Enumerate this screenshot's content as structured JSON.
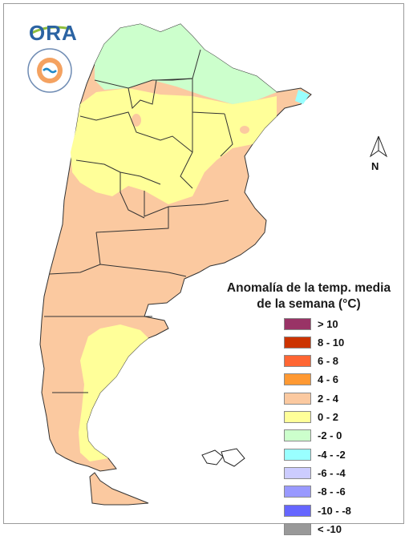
{
  "logo": {
    "text": "ORA",
    "seal_text": "INSTITUTO METEOROLOGICO NACIONAL ARGENTINA"
  },
  "north_arrow": {
    "label": "N"
  },
  "legend": {
    "title_line1": "Anomalía de la temp. media",
    "title_line2": "de la semana (°C)",
    "items": [
      {
        "label": "> 10",
        "color": "#993366"
      },
      {
        "label": "8 - 10",
        "color": "#cc3300"
      },
      {
        "label": "6 - 8",
        "color": "#ff6633"
      },
      {
        "label": "4 - 6",
        "color": "#ff9933"
      },
      {
        "label": "2 - 4",
        "color": "#fbc9a0"
      },
      {
        "label": "0 - 2",
        "color": "#ffff99"
      },
      {
        "label": "-2 - 0",
        "color": "#ccffcc"
      },
      {
        "label": "-4 - -2",
        "color": "#99ffff"
      },
      {
        "label": "-6 - -4",
        "color": "#ccccff"
      },
      {
        "label": "-8 - -6",
        "color": "#9999ff"
      },
      {
        "label": "-10 - -8",
        "color": "#6666ff"
      },
      {
        "label": "< -10",
        "color": "#999999"
      }
    ]
  }
}
